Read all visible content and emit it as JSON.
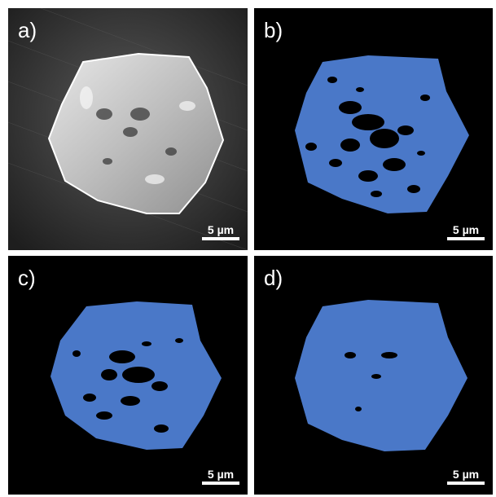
{
  "panels": [
    {
      "label": "a)",
      "scale": "5 µm",
      "style": "micrograph"
    },
    {
      "label": "b)",
      "scale": "5 µm",
      "style": "segmented",
      "porosity": "high"
    },
    {
      "label": "c)",
      "scale": "5 µm",
      "style": "segmented",
      "porosity": "medium"
    },
    {
      "label": "d)",
      "scale": "5 µm",
      "style": "segmented",
      "porosity": "low"
    }
  ],
  "colors": {
    "crystal_fill": "#4a78c8",
    "background": "#000000",
    "micrograph_gray": "#cfcfcf",
    "text": "#ffffff"
  }
}
